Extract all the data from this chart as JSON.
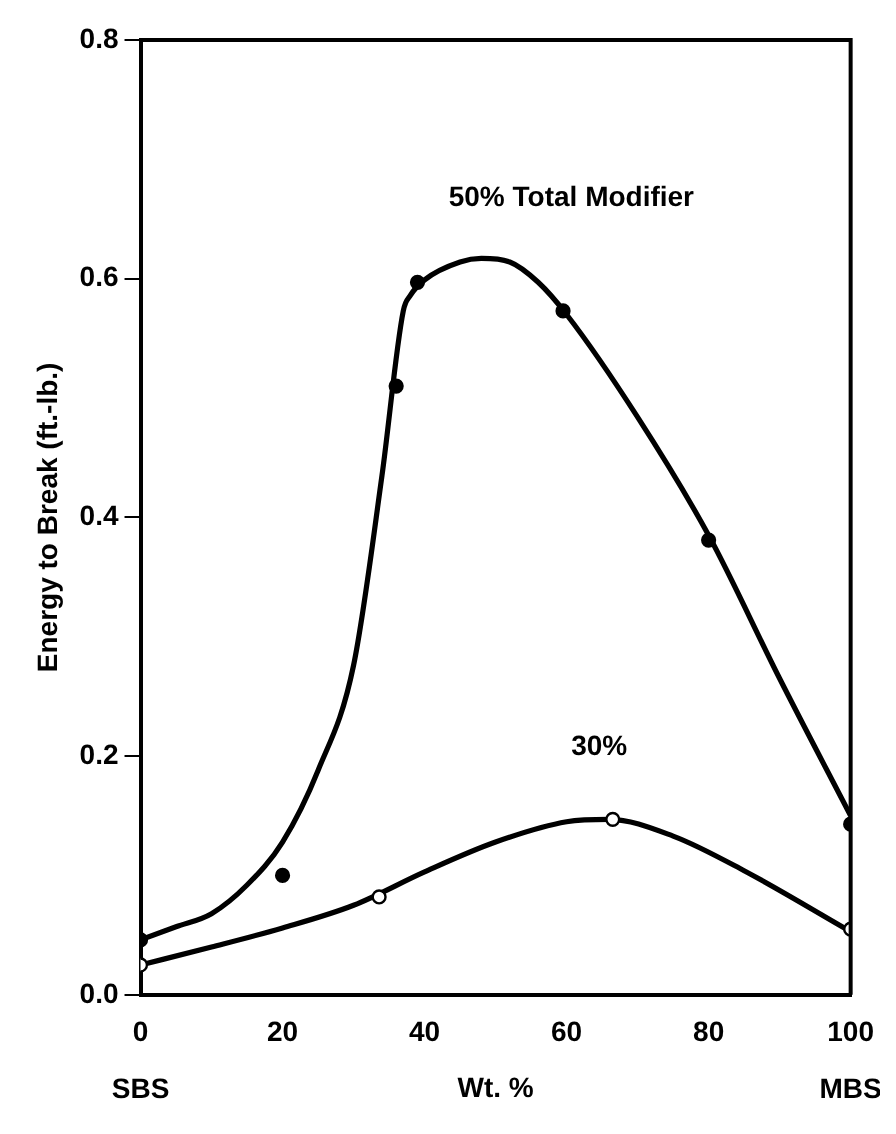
{
  "chart_data": {
    "type": "line",
    "xlabel": "Wt. %",
    "ylabel": "Energy to Break (ft.-lb.)",
    "annotations": [
      "SBS",
      "MBS"
    ],
    "xlim": [
      0,
      100
    ],
    "xticks": [
      0,
      20,
      40,
      60,
      80,
      100
    ],
    "ylim": [
      0,
      0.8
    ],
    "yticks": [
      {
        "value": 0,
        "label": "0.0"
      },
      {
        "value": 0.2,
        "label": "0.2"
      },
      {
        "value": 0.4,
        "label": "0.4"
      },
      {
        "value": 0.6,
        "label": "0.6"
      },
      {
        "value": 0.8,
        "label": "0.8"
      }
    ],
    "grid": false,
    "legend": false,
    "series": [
      {
        "type": "scatter",
        "color": "#000000",
        "marker": "circle",
        "x": [
          0,
          20,
          36,
          39,
          59.5,
          80,
          100
        ],
        "values": [
          0.046,
          0.1,
          0.51,
          0.597,
          0.573,
          0.381,
          0.143
        ]
      },
      {
        "name": "50% Total Modifier",
        "color": "#000000",
        "marker": "none",
        "x": [
          0,
          5,
          10,
          15,
          20,
          25,
          30,
          34,
          37,
          38,
          40,
          45,
          48,
          52,
          56,
          60,
          70,
          80,
          90,
          100
        ],
        "values": [
          0.046,
          0.057,
          0.068,
          0.092,
          0.128,
          0.188,
          0.276,
          0.435,
          0.573,
          0.586,
          0.599,
          0.614,
          0.617,
          0.614,
          0.597,
          0.57,
          0.484,
          0.385,
          0.265,
          0.15
        ]
      },
      {
        "type": "scatter",
        "color": "#000000",
        "marker": "circle",
        "x": [
          0,
          33.6,
          66.5,
          100
        ],
        "values": [
          0.025,
          0.082,
          0.147,
          0.055
        ]
      },
      {
        "name": "30%",
        "color": "#000000",
        "marker": "none",
        "x": [
          0,
          10,
          20,
          30,
          40,
          50,
          60,
          66,
          75,
          85,
          100
        ],
        "values": [
          0.025,
          0.04,
          0.056,
          0.075,
          0.103,
          0.128,
          0.145,
          0.147,
          0.133,
          0.104,
          0.053
        ]
      }
    ]
  }
}
